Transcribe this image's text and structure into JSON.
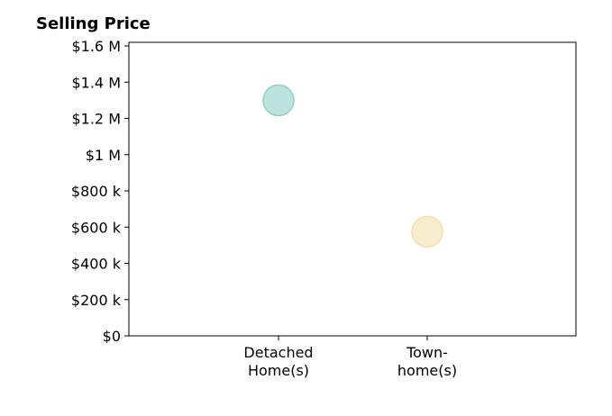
{
  "chart_data": {
    "type": "scatter",
    "title": "Selling Price",
    "xlabel": "",
    "ylabel": "",
    "categories": [
      [
        "Detached",
        "Home(s)"
      ],
      [
        "Town-",
        "home(s)"
      ]
    ],
    "ylim": [
      0,
      1620000
    ],
    "y_ticks": [
      {
        "value": 0,
        "label": "$0"
      },
      {
        "value": 200000,
        "label": "$200 k"
      },
      {
        "value": 400000,
        "label": "$400 k"
      },
      {
        "value": 600000,
        "label": "$600 k"
      },
      {
        "value": 800000,
        "label": "$800 k"
      },
      {
        "value": 1000000,
        "label": "$1 M"
      },
      {
        "value": 1200000,
        "label": "$1.2 M"
      },
      {
        "value": 1400000,
        "label": "$1.4 M"
      },
      {
        "value": 1600000,
        "label": "$1.6 M"
      }
    ],
    "points": [
      {
        "category": "Detached Home(s)",
        "value": 1300000,
        "color": "#8fd0c7"
      },
      {
        "category": "Townhome(s)",
        "value": 575000,
        "color": "#f4dfae"
      }
    ],
    "grid": false,
    "legend": "none"
  }
}
